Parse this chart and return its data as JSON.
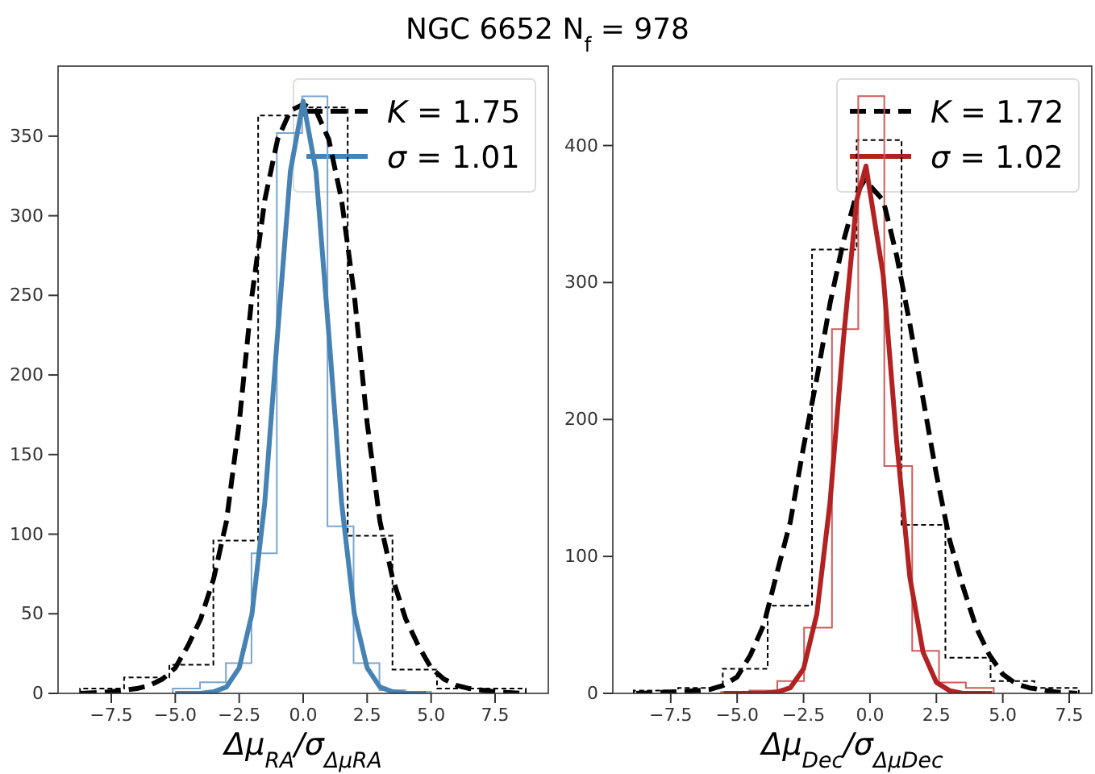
{
  "chart_data": [
    {
      "type": "histogram",
      "title": "NGC 6652   N$_{f}$ = 978",
      "xlabel": "Δμ$_{RA}$/σ$_{ΔμRA}$",
      "xlim": [
        -9.58,
        9.58
      ],
      "ylim": [
        0,
        394
      ],
      "xticks": [
        {
          "value": -7.5,
          "label": "−7.5"
        },
        {
          "value": -5,
          "label": "−5.0"
        },
        {
          "value": -2.5,
          "label": "−2.5"
        },
        {
          "value": 0,
          "label": "0.0"
        },
        {
          "value": 2.5,
          "label": "2.5"
        },
        {
          "value": 5,
          "label": "5.0"
        },
        {
          "value": 7.5,
          "label": "7.5"
        }
      ],
      "yticks": [
        0,
        50,
        100,
        150,
        200,
        250,
        300,
        350
      ],
      "legend": "top right",
      "series": [
        {
          "color": "#000000",
          "line_style": "dashed",
          "bins": [
            -8.72,
            -7.0,
            -5.23,
            -3.51,
            -1.76,
            0,
            1.74,
            3.49,
            5.23,
            6.97,
            8.7
          ],
          "values": [
            3,
            10,
            18,
            96,
            363,
            368,
            99,
            15,
            3,
            3
          ]
        },
        {
          "color": "#7aa6cf",
          "line_style": "solid",
          "bins": [
            -5.1,
            -4.03,
            -3.02,
            -2.02,
            -1.03,
            -0.04,
            0.95,
            1.97,
            2.98,
            3.99,
            5.0
          ],
          "values": [
            3,
            7,
            19,
            88,
            352,
            375,
            105,
            19,
            2,
            1
          ]
        },
        {
          "type": "line",
          "name": "K = 1.75",
          "color": "#000000",
          "line_style": "dashed",
          "x": [
            -8.7,
            -7.5,
            -6.5,
            -6,
            -5.5,
            -5,
            -4.5,
            -4,
            -3.5,
            -3,
            -2.5,
            -2,
            -1.5,
            -1,
            -0.5,
            0,
            0.5,
            1,
            1.5,
            2,
            2.5,
            3,
            3.5,
            4,
            4.5,
            5,
            5.5,
            6,
            6.5,
            7.5,
            8.6
          ],
          "values": [
            0,
            1,
            3,
            5,
            9,
            16,
            30,
            47,
            72,
            108,
            170,
            250,
            310,
            348,
            366,
            370,
            366,
            348,
            310,
            250,
            170,
            108,
            72,
            47,
            30,
            16,
            9,
            5,
            3,
            1,
            0
          ]
        },
        {
          "type": "line",
          "name": "σ = 1.01",
          "color": "#4682b4",
          "line_style": "solid",
          "x": [
            -5,
            -4,
            -3.5,
            -3,
            -2.5,
            -2,
            -1.5,
            -1,
            -0.5,
            0,
            0.5,
            1,
            1.5,
            2,
            2.5,
            3,
            3.5,
            4,
            4.8
          ],
          "values": [
            0,
            0,
            1,
            4,
            16,
            50,
            120,
            226,
            328,
            372,
            328,
            226,
            120,
            50,
            16,
            4,
            1,
            0,
            0
          ]
        }
      ]
    },
    {
      "type": "histogram",
      "xlabel": "Δμ$_{Dec}$/σ$_{ΔμDec}$",
      "xlim": [
        -9.68,
        8.35
      ],
      "ylim": [
        0,
        458
      ],
      "xticks": [
        {
          "value": -7.5,
          "label": "−7.5"
        },
        {
          "value": -5,
          "label": "−5.0"
        },
        {
          "value": -2.5,
          "label": "−2.5"
        },
        {
          "value": 0,
          "label": "0.0"
        },
        {
          "value": 2.5,
          "label": "2.5"
        },
        {
          "value": 5,
          "label": "5.0"
        },
        {
          "value": 7.5,
          "label": "7.5"
        }
      ],
      "yticks": [
        0,
        100,
        200,
        300,
        400
      ],
      "legend": "top right",
      "series": [
        {
          "color": "#000000",
          "line_style": "dashed",
          "bins": [
            -8.89,
            -7.22,
            -5.54,
            -3.85,
            -2.18,
            -0.5,
            1.19,
            2.84,
            4.54,
            6.19,
            7.86
          ],
          "values": [
            2,
            4,
            18,
            64,
            324,
            404,
            123,
            26,
            9,
            4
          ]
        },
        {
          "color": "#d25a5a",
          "line_style": "solid",
          "bins": [
            -5.6,
            -4.54,
            -3.49,
            -2.48,
            -1.43,
            -0.44,
            0.54,
            1.59,
            2.6,
            3.61,
            4.66
          ],
          "values": [
            1,
            2,
            9,
            48,
            266,
            436,
            166,
            31,
            8,
            4
          ]
        },
        {
          "type": "line",
          "name": "K = 1.72",
          "color": "#000000",
          "line_style": "dashed",
          "x": [
            -8.8,
            -7.5,
            -6.5,
            -6,
            -5.5,
            -5,
            -4.5,
            -4,
            -3.5,
            -3,
            -2.5,
            -2,
            -1.5,
            -1,
            -0.5,
            -0.2,
            0.5,
            1,
            1.5,
            2,
            2.5,
            3,
            3.5,
            4,
            4.5,
            5,
            5.5,
            6,
            7,
            7.8
          ],
          "values": [
            0,
            1,
            2,
            3,
            6,
            12,
            28,
            50,
            88,
            125,
            180,
            230,
            285,
            330,
            365,
            375,
            360,
            320,
            270,
            215,
            160,
            112,
            78,
            48,
            28,
            14,
            7,
            4,
            1,
            0
          ]
        },
        {
          "type": "line",
          "name": "σ = 1.02",
          "color": "#b22222",
          "line_style": "solid",
          "x": [
            -5.5,
            -4,
            -3.5,
            -3,
            -2.5,
            -2,
            -1.5,
            -1,
            -0.5,
            -0.15,
            0.5,
            1,
            1.5,
            2,
            2.5,
            3,
            3.5,
            4.6
          ],
          "values": [
            0,
            0,
            1,
            4,
            18,
            58,
            140,
            258,
            360,
            385,
            305,
            185,
            85,
            30,
            8,
            2,
            0,
            0
          ]
        }
      ]
    }
  ]
}
